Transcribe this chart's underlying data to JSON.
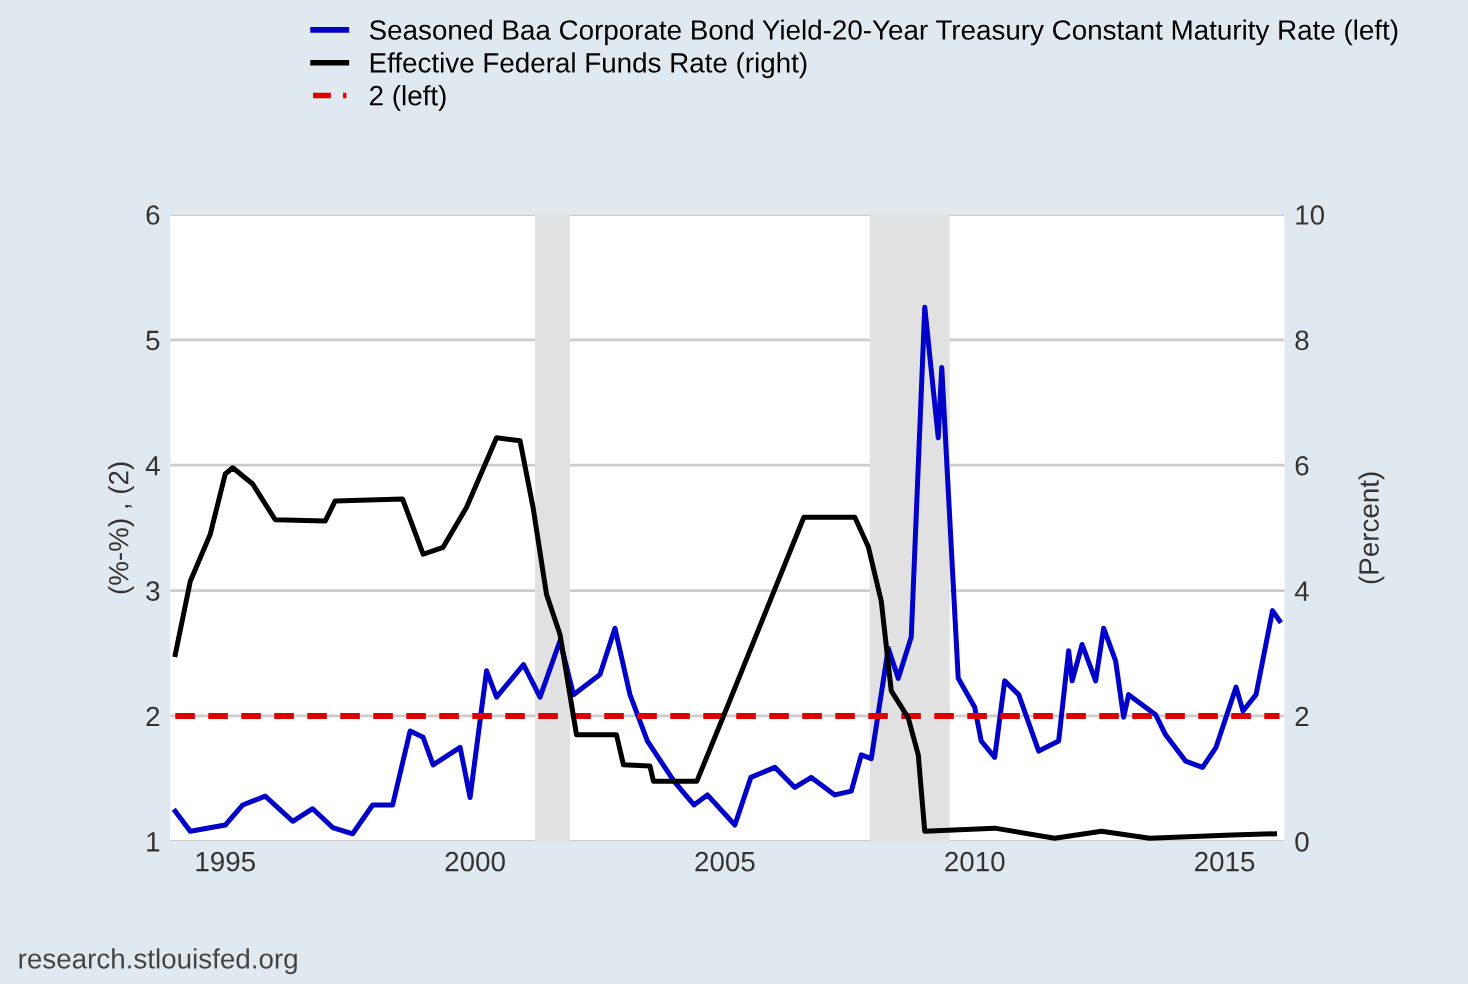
{
  "chart_data": {
    "type": "line",
    "xlabel": null,
    "ylabel": "(%-%) , (2)",
    "y2label": "(Percent)",
    "xlim": [
      1993.9,
      2016.2
    ],
    "xticks": [
      1995,
      2000,
      2005,
      2010,
      2015
    ],
    "ylim": [
      1,
      6
    ],
    "yticks": [
      1,
      2,
      3,
      4,
      5,
      6
    ],
    "y2lim": [
      0,
      10
    ],
    "y2ticks": [
      0,
      2,
      4,
      6,
      8,
      10
    ],
    "grid": "y",
    "legend": "top",
    "bands": [
      {
        "axis": "x",
        "from": 2001.2,
        "to": 2001.9,
        "color": "#e1e1e1"
      },
      {
        "axis": "x",
        "from": 2007.9,
        "to": 2009.5,
        "color": "#e1e1e1"
      }
    ],
    "annotations": [
      "research.stlouisfed.org"
    ],
    "series": [
      {
        "name": "Seasoned Baa Corporate Bond Yield-20-Year Treasury Constant Maturity Rate (left)",
        "color": "#0000c8",
        "axis": "y",
        "line_style": "solid",
        "x": [
          1994.0,
          1994.3,
          1995.0,
          1995.35,
          1995.8,
          1996.35,
          1996.75,
          1997.15,
          1997.55,
          1997.95,
          1998.35,
          1998.7,
          1998.96,
          1999.16,
          1999.7,
          1999.9,
          2000.23,
          2000.43,
          2000.97,
          2001.3,
          2001.7,
          2001.97,
          2002.5,
          2002.8,
          2003.1,
          2003.45,
          2003.98,
          2004.38,
          2004.65,
          2005.2,
          2005.52,
          2006.0,
          2006.4,
          2006.73,
          2007.2,
          2007.53,
          2007.73,
          2007.93,
          2008.27,
          2008.47,
          2008.73,
          2009.0,
          2009.27,
          2009.34,
          2009.67,
          2010.0,
          2010.13,
          2010.4,
          2010.6,
          2010.88,
          2011.28,
          2011.68,
          2011.88,
          2011.95,
          2012.15,
          2012.42,
          2012.58,
          2012.82,
          2012.98,
          2013.08,
          2013.62,
          2013.82,
          2014.22,
          2014.56,
          2014.83,
          2015.23,
          2015.37,
          2015.63,
          2015.96,
          2016.1
        ],
        "values": [
          1.24,
          1.08,
          1.13,
          1.29,
          1.36,
          1.16,
          1.26,
          1.11,
          1.06,
          1.29,
          1.29,
          1.88,
          1.83,
          1.61,
          1.75,
          1.35,
          2.36,
          2.15,
          2.41,
          2.15,
          2.6,
          2.17,
          2.33,
          2.7,
          2.17,
          1.8,
          1.48,
          1.29,
          1.37,
          1.13,
          1.51,
          1.59,
          1.43,
          1.51,
          1.37,
          1.4,
          1.69,
          1.66,
          2.54,
          2.3,
          2.63,
          5.26,
          4.22,
          4.78,
          2.3,
          2.07,
          1.8,
          1.67,
          2.28,
          2.17,
          1.72,
          1.8,
          2.52,
          2.28,
          2.57,
          2.28,
          2.7,
          2.44,
          1.99,
          2.17,
          2.01,
          1.85,
          1.64,
          1.59,
          1.75,
          2.23,
          2.04,
          2.17,
          2.84,
          2.76
        ]
      },
      {
        "name": "Effective Federal Funds Rate (right)",
        "color": "#000000",
        "axis": "y2",
        "line_style": "solid",
        "x": [
          1994.0,
          1994.3,
          1994.7,
          1995.0,
          1995.15,
          1995.55,
          1996.0,
          1997.0,
          1997.2,
          1998.55,
          1998.96,
          1999.36,
          1999.83,
          2000.43,
          2000.9,
          2001.16,
          2001.43,
          2001.7,
          2002.03,
          2002.83,
          2002.97,
          2003.5,
          2003.57,
          2004.44,
          2005.04,
          2006.58,
          2007.6,
          2007.87,
          2008.13,
          2008.33,
          2008.67,
          2008.87,
          2009.0,
          2010.4,
          2011.6,
          2012.54,
          2013.5,
          2015.15,
          2016.0
        ],
        "values": [
          2.98,
          4.15,
          4.9,
          5.86,
          5.96,
          5.7,
          5.13,
          5.11,
          5.43,
          5.46,
          4.58,
          4.69,
          5.33,
          6.44,
          6.39,
          5.33,
          3.94,
          3.3,
          1.7,
          1.7,
          1.22,
          1.2,
          0.96,
          0.96,
          2.13,
          5.17,
          5.17,
          4.7,
          3.83,
          2.4,
          1.97,
          1.38,
          0.16,
          0.21,
          0.05,
          0.16,
          0.05,
          0.1,
          0.12
        ]
      },
      {
        "name": "2 (left)",
        "color": "#dd0000",
        "axis": "y",
        "line_style": "dashed",
        "x": [
          1994.0,
          2016.1
        ],
        "values": [
          2,
          2
        ]
      }
    ]
  }
}
